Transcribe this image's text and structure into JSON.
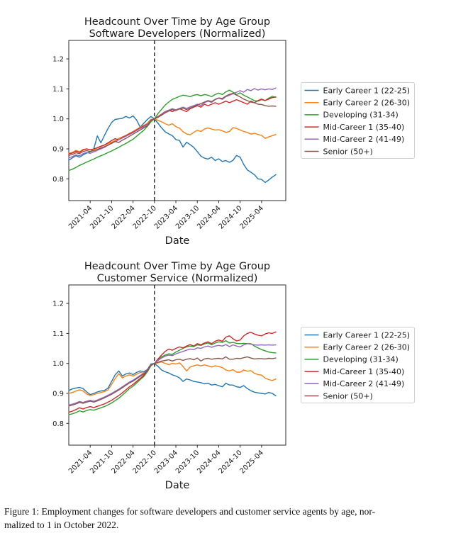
{
  "figure": {
    "caption": {
      "lines": [
        "Figure 1: Employment changes for software developers and customer service agents by age, nor-",
        "malized to 1 in October 2022."
      ],
      "text": "Figure 1: Employment changes for software developers and customer service agents by age, normalized to 1 in October 2022."
    }
  },
  "colors": {
    "blue": "#1f77b4",
    "orange": "#ff7f0e",
    "green": "#2ca02c",
    "red": "#d62728",
    "purple": "#9467bd",
    "brown": "#8c564b",
    "spine": "#2b2b2b",
    "dashed_line": "#111111",
    "legend_border": "#cfcfcf"
  },
  "chart_data": [
    {
      "type": "line",
      "title_line1": "Headcount Over Time by Age Group",
      "title_line2": "Software Developers (Normalized)",
      "xlabel": "Date",
      "ylabel": "",
      "grid": false,
      "legend_position": "center-right-outside",
      "x_start": "2020-10",
      "x_frequency": "monthly",
      "xtick_labels": [
        "2021-04",
        "2021-10",
        "2022-04",
        "2022-10",
        "2023-04",
        "2023-10",
        "2024-04",
        "2024-10",
        "2025-04"
      ],
      "xtick_indices": [
        6,
        12,
        18,
        24,
        30,
        36,
        42,
        48,
        54
      ],
      "yticks": [
        0.8,
        0.9,
        1.0,
        1.1,
        1.2
      ],
      "ylim": [
        0.727,
        1.262
      ],
      "normalization": {
        "label": "2022-10",
        "index": 24,
        "style": "dashed-vertical"
      },
      "series": [
        {
          "name": "Early Career 1 (22-25)",
          "color": "#1f77b4",
          "values": [
            0.862,
            0.87,
            0.877,
            0.872,
            0.88,
            0.886,
            0.89,
            0.9,
            0.943,
            0.92,
            0.945,
            0.968,
            0.988,
            0.998,
            1.0,
            1.002,
            1.008,
            1.003,
            1.01,
            0.996,
            0.972,
            0.985,
            0.998,
            1.008,
            1.0,
            0.985,
            0.97,
            0.957,
            0.95,
            0.944,
            0.931,
            0.928,
            0.906,
            0.922,
            0.914,
            0.905,
            0.891,
            0.876,
            0.869,
            0.866,
            0.872,
            0.861,
            0.867,
            0.858,
            0.861,
            0.855,
            0.862,
            0.878,
            0.872,
            0.848,
            0.83,
            0.822,
            0.814,
            0.8,
            0.798,
            0.788,
            0.796,
            0.806,
            0.814
          ]
        },
        {
          "name": "Early Career 2 (26-30)",
          "color": "#ff7f0e",
          "values": [
            0.885,
            0.888,
            0.895,
            0.89,
            0.898,
            0.9,
            0.896,
            0.898,
            0.903,
            0.908,
            0.912,
            0.918,
            0.922,
            0.928,
            0.935,
            0.94,
            0.945,
            0.952,
            0.958,
            0.965,
            0.972,
            0.978,
            0.985,
            0.998,
            1.0,
            0.995,
            0.99,
            0.984,
            0.979,
            0.984,
            0.974,
            0.969,
            0.957,
            0.95,
            0.947,
            0.955,
            0.962,
            0.958,
            0.966,
            0.97,
            0.966,
            0.963,
            0.964,
            0.96,
            0.955,
            0.958,
            0.971,
            0.968,
            0.963,
            0.958,
            0.955,
            0.949,
            0.952,
            0.948,
            0.945,
            0.935,
            0.94,
            0.944,
            0.948
          ]
        },
        {
          "name": "Developing (31-34)",
          "color": "#2ca02c",
          "values": [
            0.828,
            0.832,
            0.838,
            0.845,
            0.85,
            0.856,
            0.861,
            0.866,
            0.872,
            0.877,
            0.882,
            0.888,
            0.893,
            0.899,
            0.905,
            0.912,
            0.918,
            0.925,
            0.932,
            0.942,
            0.952,
            0.962,
            0.975,
            0.99,
            1.0,
            1.018,
            1.032,
            1.046,
            1.056,
            1.065,
            1.07,
            1.075,
            1.079,
            1.077,
            1.074,
            1.079,
            1.081,
            1.077,
            1.081,
            1.079,
            1.074,
            1.081,
            1.086,
            1.081,
            1.09,
            1.096,
            1.089,
            1.081,
            1.087,
            1.079,
            1.073,
            1.067,
            1.061,
            1.059,
            1.064,
            1.061,
            1.069,
            1.075,
            1.072
          ]
        },
        {
          "name": "Mid-Career 1 (35-40)",
          "color": "#d62728",
          "values": [
            0.883,
            0.886,
            0.892,
            0.888,
            0.896,
            0.9,
            0.897,
            0.9,
            0.904,
            0.909,
            0.913,
            0.92,
            0.928,
            0.934,
            0.93,
            0.938,
            0.944,
            0.95,
            0.956,
            0.963,
            0.97,
            0.976,
            0.982,
            0.996,
            1.0,
            1.008,
            1.016,
            1.024,
            1.029,
            1.024,
            1.03,
            1.034,
            1.029,
            1.024,
            1.034,
            1.039,
            1.044,
            1.039,
            1.049,
            1.044,
            1.049,
            1.054,
            1.049,
            1.054,
            1.059,
            1.054,
            1.059,
            1.064,
            1.059,
            1.054,
            1.049,
            1.059,
            1.054,
            1.061,
            1.066,
            1.061,
            1.066,
            1.071,
            1.073
          ]
        },
        {
          "name": "Mid-Career 2 (41-49)",
          "color": "#9467bd",
          "values": [
            0.87,
            0.874,
            0.88,
            0.877,
            0.884,
            0.888,
            0.885,
            0.89,
            0.895,
            0.9,
            0.905,
            0.912,
            0.918,
            0.924,
            0.93,
            0.936,
            0.942,
            0.948,
            0.954,
            0.961,
            0.968,
            0.974,
            0.981,
            0.997,
            1.0,
            1.005,
            1.014,
            1.023,
            1.029,
            1.034,
            1.03,
            1.035,
            1.039,
            1.035,
            1.04,
            1.044,
            1.049,
            1.045,
            1.054,
            1.059,
            1.055,
            1.064,
            1.069,
            1.065,
            1.074,
            1.079,
            1.084,
            1.089,
            1.094,
            1.089,
            1.098,
            1.094,
            1.101,
            1.096,
            1.1,
            1.097,
            1.1,
            1.098,
            1.103
          ]
        },
        {
          "name": "Senior (50+)",
          "color": "#8c564b",
          "values": [
            0.878,
            0.881,
            0.887,
            0.884,
            0.891,
            0.894,
            0.891,
            0.894,
            0.898,
            0.903,
            0.907,
            0.913,
            0.919,
            0.925,
            0.921,
            0.929,
            0.935,
            0.942,
            0.949,
            0.956,
            0.963,
            0.97,
            0.977,
            0.995,
            1.0,
            1.006,
            1.012,
            1.02,
            1.026,
            1.031,
            1.028,
            1.033,
            1.036,
            1.031,
            1.036,
            1.041,
            1.046,
            1.051,
            1.056,
            1.061,
            1.058,
            1.065,
            1.07,
            1.068,
            1.076,
            1.082,
            1.085,
            1.079,
            1.073,
            1.066,
            1.061,
            1.056,
            1.054,
            1.049,
            1.048,
            1.044,
            1.042,
            1.043,
            1.042
          ]
        }
      ]
    },
    {
      "type": "line",
      "title_line1": "Headcount Over Time by Age Group",
      "title_line2": "Customer Service (Normalized)",
      "xlabel": "Date",
      "ylabel": "",
      "grid": false,
      "legend_position": "center-right-outside",
      "x_start": "2020-10",
      "x_frequency": "monthly",
      "xtick_labels": [
        "2021-04",
        "2021-10",
        "2022-04",
        "2022-10",
        "2023-04",
        "2023-10",
        "2024-04",
        "2024-10",
        "2025-04"
      ],
      "xtick_indices": [
        6,
        12,
        18,
        24,
        30,
        36,
        42,
        48,
        54
      ],
      "yticks": [
        0.8,
        0.9,
        1.0,
        1.1,
        1.2
      ],
      "ylim": [
        0.727,
        1.262
      ],
      "normalization": {
        "label": "2022-10",
        "index": 24,
        "style": "dashed-vertical"
      },
      "series": [
        {
          "name": "Early Career 1 (22-25)",
          "color": "#1f77b4",
          "values": [
            0.91,
            0.915,
            0.918,
            0.92,
            0.916,
            0.905,
            0.896,
            0.9,
            0.905,
            0.908,
            0.91,
            0.918,
            0.94,
            0.962,
            0.975,
            0.958,
            0.965,
            0.968,
            0.963,
            0.97,
            0.975,
            0.972,
            0.98,
            0.998,
            1.0,
            0.99,
            0.978,
            0.972,
            0.968,
            0.962,
            0.958,
            0.952,
            0.94,
            0.948,
            0.945,
            0.94,
            0.938,
            0.936,
            0.932,
            0.934,
            0.928,
            0.93,
            0.926,
            0.922,
            0.934,
            0.928,
            0.928,
            0.922,
            0.92,
            0.926,
            0.916,
            0.909,
            0.904,
            0.902,
            0.9,
            0.898,
            0.903,
            0.9,
            0.892
          ]
        },
        {
          "name": "Early Career 2 (26-30)",
          "color": "#ff7f0e",
          "values": [
            0.9,
            0.903,
            0.908,
            0.912,
            0.908,
            0.898,
            0.893,
            0.896,
            0.9,
            0.903,
            0.906,
            0.912,
            0.93,
            0.95,
            0.966,
            0.952,
            0.958,
            0.962,
            0.958,
            0.964,
            0.97,
            0.968,
            0.976,
            0.996,
            1.0,
            1.002,
            1.005,
            1.0,
            0.996,
            1.0,
            0.998,
            1.002,
            0.99,
            0.975,
            0.988,
            0.992,
            0.995,
            0.992,
            0.995,
            0.992,
            0.988,
            0.992,
            0.99,
            0.986,
            0.978,
            0.975,
            0.979,
            0.971,
            0.971,
            0.978,
            0.974,
            0.976,
            0.967,
            0.963,
            0.961,
            0.951,
            0.946,
            0.943,
            0.948
          ]
        },
        {
          "name": "Developing (31-34)",
          "color": "#2ca02c",
          "values": [
            0.829,
            0.832,
            0.836,
            0.842,
            0.838,
            0.843,
            0.846,
            0.844,
            0.848,
            0.852,
            0.856,
            0.862,
            0.868,
            0.876,
            0.884,
            0.894,
            0.905,
            0.916,
            0.924,
            0.935,
            0.946,
            0.956,
            0.972,
            0.992,
            1.0,
            1.012,
            1.022,
            1.028,
            1.032,
            1.03,
            1.038,
            1.044,
            1.05,
            1.055,
            1.058,
            1.056,
            1.062,
            1.06,
            1.065,
            1.068,
            1.062,
            1.068,
            1.072,
            1.07,
            1.076,
            1.068,
            1.07,
            1.067,
            1.066,
            1.067,
            1.066,
            1.066,
            1.058,
            1.052,
            1.046,
            1.042,
            1.038,
            1.036,
            1.035
          ]
        },
        {
          "name": "Mid-Career 1 (35-40)",
          "color": "#d62728",
          "values": [
            0.837,
            0.841,
            0.846,
            0.852,
            0.848,
            0.853,
            0.856,
            0.853,
            0.857,
            0.861,
            0.865,
            0.871,
            0.877,
            0.885,
            0.893,
            0.902,
            0.912,
            0.922,
            0.93,
            0.94,
            0.95,
            0.96,
            0.975,
            0.994,
            1.0,
            1.015,
            1.028,
            1.04,
            1.048,
            1.044,
            1.05,
            1.055,
            1.052,
            1.058,
            1.063,
            1.058,
            1.066,
            1.062,
            1.068,
            1.072,
            1.066,
            1.074,
            1.078,
            1.074,
            1.088,
            1.092,
            1.082,
            1.075,
            1.078,
            1.092,
            1.1,
            1.104,
            1.098,
            1.094,
            1.092,
            1.098,
            1.102,
            1.1,
            1.105
          ]
        },
        {
          "name": "Mid-Career 2 (41-49)",
          "color": "#9467bd",
          "values": [
            0.861,
            0.864,
            0.868,
            0.873,
            0.87,
            0.874,
            0.877,
            0.874,
            0.878,
            0.883,
            0.888,
            0.894,
            0.9,
            0.907,
            0.914,
            0.922,
            0.93,
            0.938,
            0.944,
            0.952,
            0.96,
            0.967,
            0.978,
            0.995,
            1.0,
            1.01,
            1.018,
            1.024,
            1.028,
            1.026,
            1.032,
            1.036,
            1.04,
            1.044,
            1.048,
            1.046,
            1.052,
            1.05,
            1.055,
            1.058,
            1.054,
            1.058,
            1.06,
            1.058,
            1.063,
            1.056,
            1.062,
            1.058,
            1.055,
            1.062,
            1.066,
            1.064,
            1.062,
            1.061,
            1.062,
            1.061,
            1.062,
            1.061,
            1.062
          ]
        },
        {
          "name": "Senior (50+)",
          "color": "#8c564b",
          "values": [
            0.858,
            0.861,
            0.865,
            0.87,
            0.867,
            0.871,
            0.874,
            0.871,
            0.875,
            0.88,
            0.885,
            0.891,
            0.897,
            0.904,
            0.911,
            0.919,
            0.927,
            0.935,
            0.941,
            0.949,
            0.957,
            0.964,
            0.976,
            0.994,
            1.0,
            1.004,
            1.008,
            1.01,
            1.012,
            1.008,
            1.012,
            1.014,
            1.01,
            1.014,
            1.016,
            1.012,
            1.018,
            1.008,
            1.015,
            1.017,
            1.014,
            1.016,
            1.017,
            1.015,
            1.022,
            1.014,
            1.014,
            1.017,
            1.016,
            1.019,
            1.022,
            1.018,
            1.015,
            1.016,
            1.016,
            1.015,
            1.017,
            1.016,
            1.018
          ]
        }
      ]
    }
  ]
}
